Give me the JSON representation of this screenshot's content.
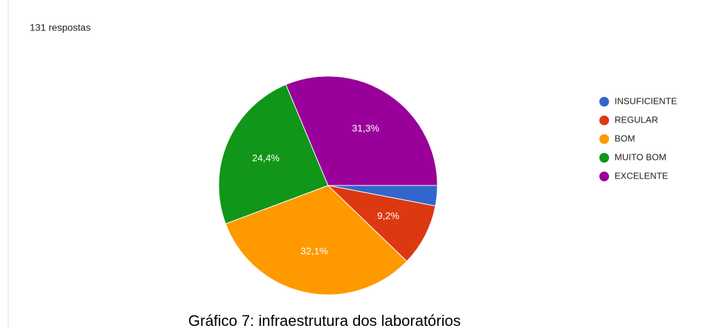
{
  "chart_data": {
    "type": "pie",
    "subtitle": "131 respostas",
    "caption": "Gráfico 7: infraestrutura dos laboratórios",
    "categories": [
      "INSUFICIENTE",
      "REGULAR",
      "BOM",
      "MUITO BOM",
      "EXCELENTE"
    ],
    "values": [
      3.0,
      9.2,
      32.1,
      24.4,
      31.3
    ],
    "value_labels": [
      null,
      "9,2%",
      "32,1%",
      "24,4%",
      "31,3%"
    ],
    "colors": [
      "#3366cc",
      "#dc3912",
      "#ff9900",
      "#109618",
      "#990099"
    ],
    "legend": "right"
  }
}
